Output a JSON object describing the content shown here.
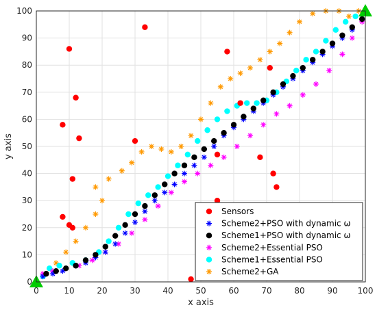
{
  "chart_data": {
    "type": "scatter",
    "title": "",
    "xlabel": "x axis",
    "ylabel": "y axis",
    "xlim": [
      0,
      100
    ],
    "ylim": [
      0,
      100
    ],
    "xticks": [
      0,
      10,
      20,
      30,
      40,
      50,
      60,
      70,
      80,
      90,
      100
    ],
    "yticks": [
      0,
      10,
      20,
      30,
      40,
      50,
      60,
      70,
      80,
      90,
      100
    ],
    "grid": true,
    "legend_position": "bottom-right",
    "endpoints": [
      [
        0,
        0
      ],
      [
        100,
        100
      ]
    ],
    "endpoint_color": "#00cc00",
    "series": [
      {
        "name": "Sensors",
        "marker": "circle",
        "color": "#ff0000",
        "points": [
          [
            10,
            86
          ],
          [
            33,
            94
          ],
          [
            58,
            85
          ],
          [
            12,
            68
          ],
          [
            71,
            79
          ],
          [
            8,
            58
          ],
          [
            13,
            53
          ],
          [
            30,
            52
          ],
          [
            62,
            66
          ],
          [
            11,
            38
          ],
          [
            55,
            47
          ],
          [
            68,
            46
          ],
          [
            72,
            40
          ],
          [
            73,
            35
          ],
          [
            55,
            30
          ],
          [
            8,
            24
          ],
          [
            10,
            21
          ],
          [
            11,
            20
          ],
          [
            47,
            1
          ]
        ]
      },
      {
        "name": "Scheme2+PSO with dynamic ω",
        "marker": "asterisk",
        "color": "#0000ff",
        "points": [
          [
            2,
            2
          ],
          [
            5,
            3
          ],
          [
            8,
            4
          ],
          [
            12,
            6
          ],
          [
            15,
            7
          ],
          [
            18,
            9
          ],
          [
            21,
            11
          ],
          [
            24,
            14
          ],
          [
            27,
            18
          ],
          [
            30,
            22
          ],
          [
            33,
            26
          ],
          [
            36,
            30
          ],
          [
            39,
            33
          ],
          [
            42,
            36
          ],
          [
            45,
            40
          ],
          [
            48,
            43
          ],
          [
            51,
            46
          ],
          [
            54,
            50
          ],
          [
            57,
            54
          ],
          [
            60,
            57
          ],
          [
            63,
            60
          ],
          [
            66,
            63
          ],
          [
            69,
            66
          ],
          [
            72,
            69
          ],
          [
            75,
            72
          ],
          [
            78,
            75
          ],
          [
            81,
            78
          ],
          [
            84,
            81
          ],
          [
            87,
            84
          ],
          [
            90,
            87
          ],
          [
            93,
            90
          ],
          [
            96,
            93
          ],
          [
            99,
            97
          ]
        ]
      },
      {
        "name": "Scheme1+PSO with dynamic ω",
        "marker": "circle",
        "color": "#000000",
        "points": [
          [
            3,
            3
          ],
          [
            6,
            4
          ],
          [
            9,
            5
          ],
          [
            12,
            6
          ],
          [
            15,
            8
          ],
          [
            18,
            10
          ],
          [
            21,
            13
          ],
          [
            24,
            17
          ],
          [
            27,
            21
          ],
          [
            30,
            25
          ],
          [
            33,
            28
          ],
          [
            36,
            32
          ],
          [
            39,
            36
          ],
          [
            42,
            40
          ],
          [
            45,
            43
          ],
          [
            48,
            46
          ],
          [
            51,
            49
          ],
          [
            54,
            52
          ],
          [
            57,
            55
          ],
          [
            60,
            58
          ],
          [
            63,
            61
          ],
          [
            66,
            64
          ],
          [
            69,
            67
          ],
          [
            72,
            70
          ],
          [
            75,
            73
          ],
          [
            78,
            76
          ],
          [
            81,
            79
          ],
          [
            84,
            82
          ],
          [
            87,
            85
          ],
          [
            90,
            88
          ],
          [
            93,
            91
          ],
          [
            96,
            94
          ],
          [
            99,
            97
          ]
        ]
      },
      {
        "name": "Scheme2+Essential PSO",
        "marker": "asterisk",
        "color": "#ff00ff",
        "points": [
          [
            2,
            3
          ],
          [
            5,
            4
          ],
          [
            9,
            5
          ],
          [
            13,
            6
          ],
          [
            17,
            8
          ],
          [
            21,
            11
          ],
          [
            25,
            14
          ],
          [
            29,
            18
          ],
          [
            33,
            23
          ],
          [
            37,
            28
          ],
          [
            41,
            33
          ],
          [
            45,
            37
          ],
          [
            49,
            40
          ],
          [
            53,
            43
          ],
          [
            57,
            46
          ],
          [
            61,
            50
          ],
          [
            65,
            54
          ],
          [
            69,
            58
          ],
          [
            73,
            62
          ],
          [
            77,
            65
          ],
          [
            81,
            69
          ],
          [
            85,
            73
          ],
          [
            89,
            78
          ],
          [
            93,
            84
          ],
          [
            96,
            90
          ],
          [
            99,
            96
          ]
        ]
      },
      {
        "name": "Scheme1+Essential PSO",
        "marker": "circle",
        "color": "#00ffff",
        "points": [
          [
            2,
            2
          ],
          [
            4,
            5
          ],
          [
            7,
            6
          ],
          [
            11,
            7
          ],
          [
            15,
            8
          ],
          [
            19,
            11
          ],
          [
            22,
            15
          ],
          [
            25,
            20
          ],
          [
            28,
            25
          ],
          [
            31,
            29
          ],
          [
            34,
            32
          ],
          [
            37,
            35
          ],
          [
            40,
            39
          ],
          [
            43,
            43
          ],
          [
            46,
            47
          ],
          [
            49,
            52
          ],
          [
            52,
            56
          ],
          [
            55,
            60
          ],
          [
            58,
            63
          ],
          [
            61,
            65
          ],
          [
            64,
            66
          ],
          [
            67,
            66
          ],
          [
            70,
            67
          ],
          [
            73,
            70
          ],
          [
            76,
            74
          ],
          [
            79,
            78
          ],
          [
            82,
            82
          ],
          [
            85,
            85
          ],
          [
            88,
            89
          ],
          [
            91,
            93
          ],
          [
            94,
            96
          ],
          [
            97,
            98
          ]
        ]
      },
      {
        "name": "Scheme2+GA",
        "marker": "asterisk",
        "color": "#ff9900",
        "points": [
          [
            3,
            3
          ],
          [
            6,
            7
          ],
          [
            9,
            11
          ],
          [
            12,
            15
          ],
          [
            15,
            20
          ],
          [
            18,
            25
          ],
          [
            20,
            30
          ],
          [
            18,
            35
          ],
          [
            22,
            38
          ],
          [
            26,
            41
          ],
          [
            29,
            44
          ],
          [
            32,
            48
          ],
          [
            35,
            50
          ],
          [
            38,
            49
          ],
          [
            41,
            48
          ],
          [
            44,
            50
          ],
          [
            47,
            54
          ],
          [
            50,
            60
          ],
          [
            53,
            66
          ],
          [
            56,
            72
          ],
          [
            59,
            75
          ],
          [
            62,
            77
          ],
          [
            65,
            79
          ],
          [
            68,
            82
          ],
          [
            71,
            85
          ],
          [
            74,
            88
          ],
          [
            77,
            92
          ],
          [
            80,
            96
          ],
          [
            84,
            99
          ],
          [
            88,
            100
          ],
          [
            92,
            100
          ],
          [
            95,
            98
          ],
          [
            98,
            100
          ]
        ]
      }
    ]
  }
}
